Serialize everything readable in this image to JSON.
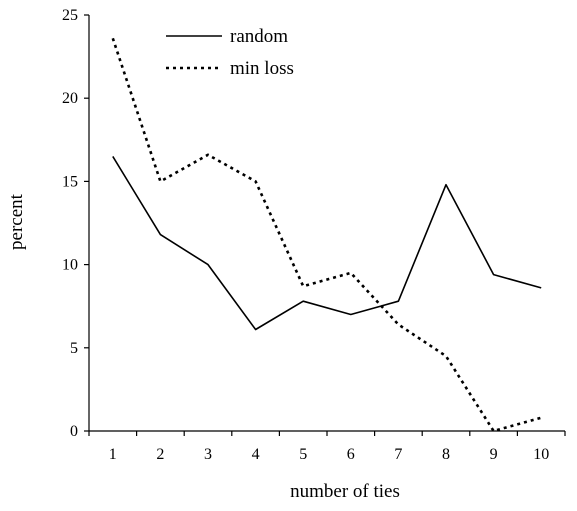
{
  "chart_data": {
    "type": "line",
    "title": "",
    "xlabel": "number of ties",
    "ylabel": "percent",
    "x": [
      1,
      2,
      3,
      4,
      5,
      6,
      7,
      8,
      9,
      10
    ],
    "xticks": [
      "1",
      "2",
      "3",
      "4",
      "5",
      "6",
      "7",
      "8",
      "9",
      "10"
    ],
    "yticks": [
      0,
      5,
      10,
      15,
      20,
      25
    ],
    "ylim": [
      0,
      25
    ],
    "grid": false,
    "legend_position": "top-center",
    "series": [
      {
        "name": "random",
        "style": "solid",
        "color": "#000000",
        "values": [
          16.5,
          11.8,
          10.0,
          6.1,
          7.8,
          7.0,
          7.8,
          14.8,
          9.4,
          8.6
        ]
      },
      {
        "name": "min loss",
        "style": "dotted",
        "color": "#000000",
        "values": [
          23.6,
          15.0,
          16.6,
          15.0,
          8.7,
          9.5,
          6.4,
          4.5,
          0.0,
          0.8
        ]
      }
    ]
  }
}
